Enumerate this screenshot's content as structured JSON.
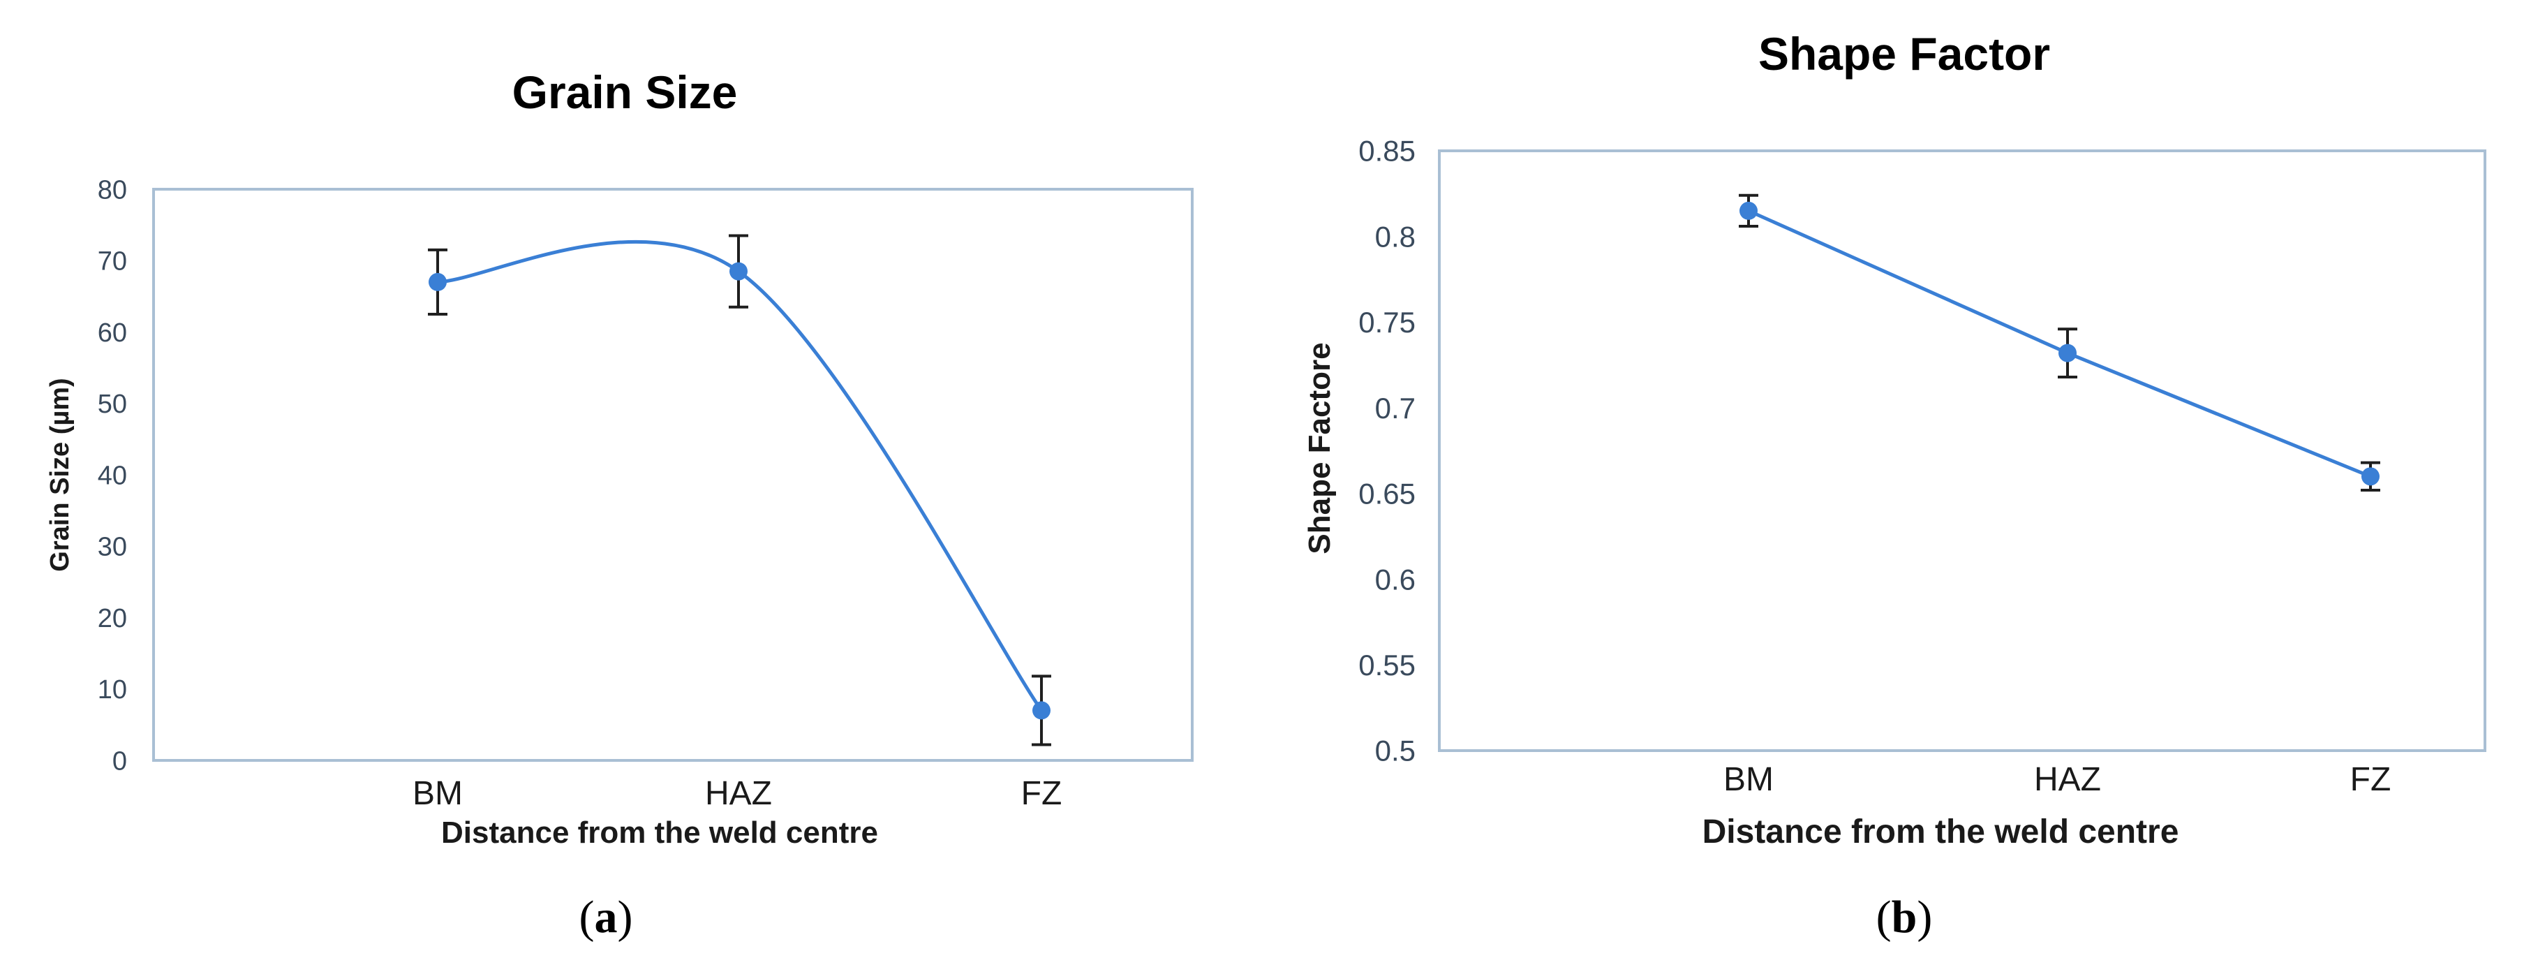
{
  "figure": {
    "panel_labels": [
      {
        "open": "(",
        "letter": "a",
        "close": ")"
      },
      {
        "open": "(",
        "letter": "b",
        "close": ")"
      }
    ]
  },
  "chart_data": [
    {
      "type": "line",
      "smooth": true,
      "title": "Grain Size",
      "xlabel": "Distance from the weld centre",
      "ylabel": "Grain Size (µm)",
      "categories": [
        "BM",
        "HAZ",
        "FZ"
      ],
      "values": [
        67,
        68.5,
        7
      ],
      "error": [
        4.5,
        5,
        4.8
      ],
      "ylim": [
        0,
        80
      ],
      "yticks": [
        0,
        10,
        20,
        30,
        40,
        50,
        60,
        70,
        80
      ],
      "ytick_labels": [
        "0",
        "10",
        "20",
        "30",
        "40",
        "50",
        "60",
        "70",
        "80"
      ],
      "color": "#3a7fd5",
      "grid": false,
      "legend": "none"
    },
    {
      "type": "line",
      "smooth": false,
      "title": "Shape Factor",
      "xlabel": "Distance from the weld centre",
      "ylabel": "Shape Factore",
      "categories": [
        "BM",
        "HAZ",
        "FZ"
      ],
      "values": [
        0.815,
        0.732,
        0.66
      ],
      "error": [
        0.009,
        0.014,
        0.008
      ],
      "ylim": [
        0.5,
        0.85
      ],
      "yticks": [
        0.5,
        0.55,
        0.6,
        0.65,
        0.7,
        0.75,
        0.8,
        0.85
      ],
      "ytick_labels": [
        "0.5",
        "0.55",
        "0.6",
        "0.65",
        "0.7",
        "0.75",
        "0.8",
        "0.85"
      ],
      "color": "#3a7fd5",
      "grid": false,
      "legend": "none"
    }
  ]
}
